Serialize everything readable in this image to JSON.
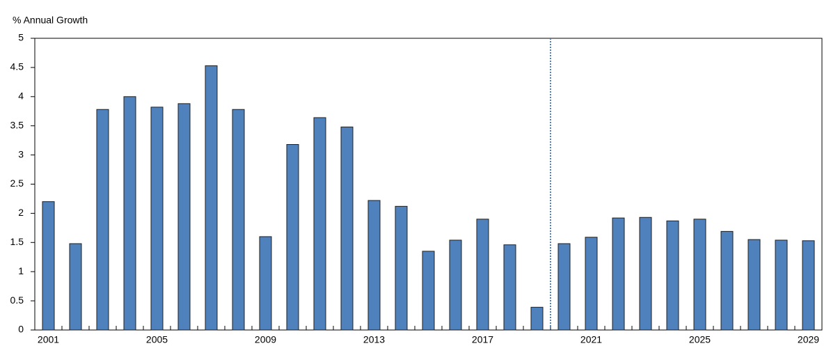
{
  "chart_data": {
    "type": "bar",
    "y_axis_label": "% Annual Growth",
    "categories": [
      "2001",
      null,
      null,
      null,
      "2005",
      null,
      null,
      null,
      "2009",
      null,
      null,
      null,
      "2013",
      null,
      null,
      null,
      "2017",
      null,
      null,
      null,
      "2021",
      null,
      null,
      null,
      "2025",
      null,
      null,
      null,
      "2029"
    ],
    "values": [
      2.2,
      1.48,
      3.78,
      4.0,
      3.82,
      3.88,
      4.53,
      3.78,
      1.6,
      3.18,
      3.64,
      3.48,
      2.22,
      2.12,
      1.35,
      1.54,
      1.9,
      1.46,
      0.39,
      1.48,
      1.59,
      1.92,
      1.93,
      1.87,
      1.9,
      1.69,
      1.55,
      1.54,
      1.53
    ],
    "color": "#4f81bd",
    "ylim": [
      0,
      5
    ],
    "yticks": [
      0,
      0.5,
      1,
      1.5,
      2,
      2.5,
      3,
      3.5,
      4,
      4.5,
      5
    ],
    "grid": false
  }
}
